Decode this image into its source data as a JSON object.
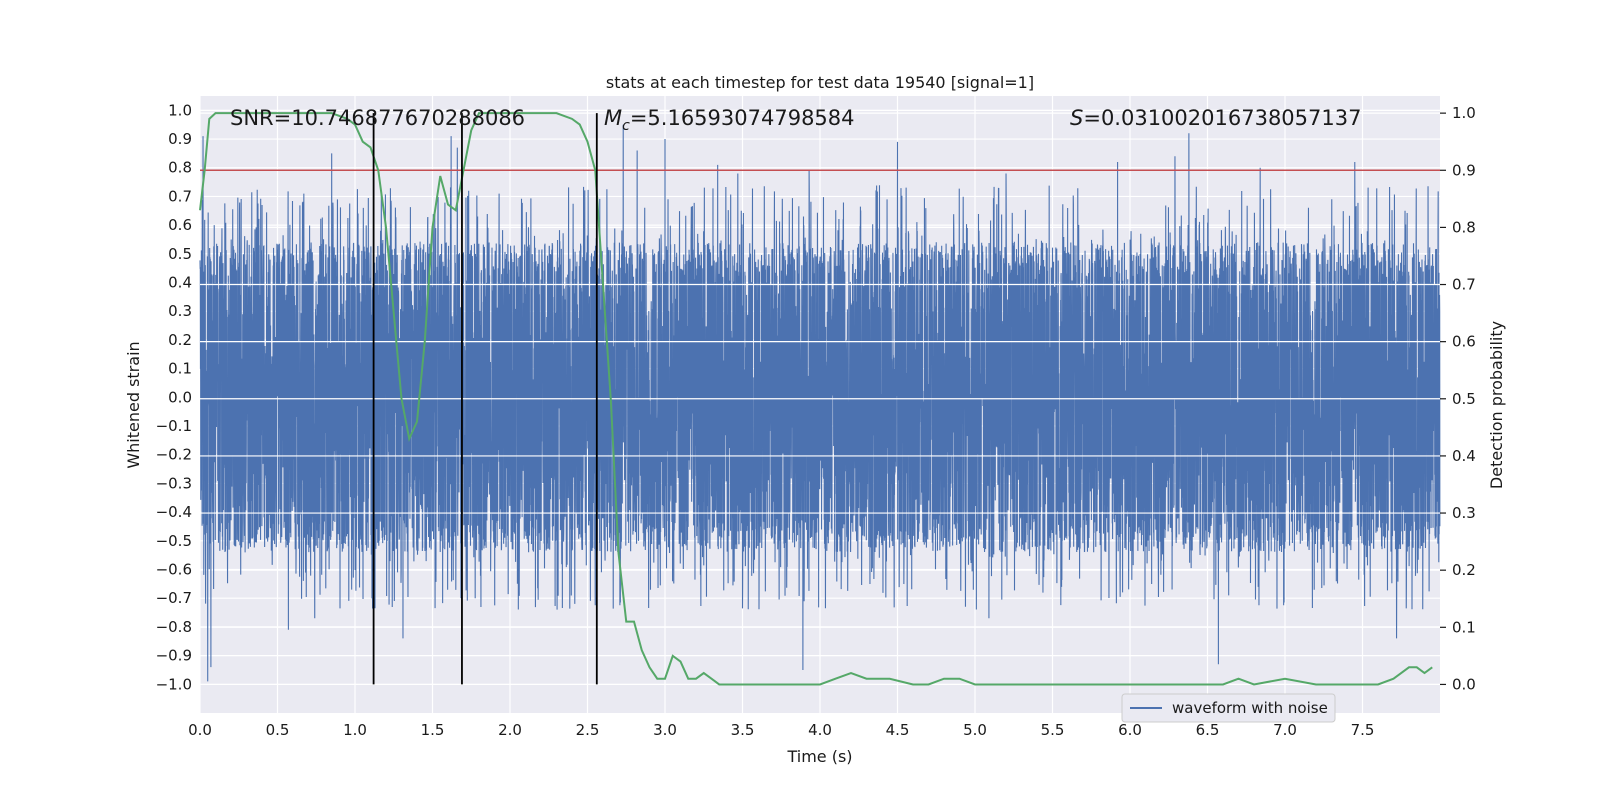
{
  "chart_data": {
    "type": "line",
    "title": "stats at each timestep for test data 19540 [signal=1]",
    "xlabel": "Time (s)",
    "ylabel_left": "Whitened strain",
    "ylabel_right": "Detection probability",
    "xlim": [
      0.0,
      8.0
    ],
    "ylim_left": [
      -1.1,
      1.05
    ],
    "ylim_right": [
      -0.05,
      1.03
    ],
    "x_ticks": [
      0.0,
      0.5,
      1.0,
      1.5,
      2.0,
      2.5,
      3.0,
      3.5,
      4.0,
      4.5,
      5.0,
      5.5,
      6.0,
      6.5,
      7.0,
      7.5
    ],
    "x_tick_labels": [
      "0.0",
      "0.5",
      "1.0",
      "1.5",
      "2.0",
      "2.5",
      "3.0",
      "3.5",
      "4.0",
      "4.5",
      "5.0",
      "5.5",
      "6.0",
      "6.5",
      "7.0",
      "7.5"
    ],
    "y_left_ticks": [
      1.0,
      0.9,
      0.8,
      0.7,
      0.6,
      0.5,
      0.4,
      0.3,
      0.2,
      0.1,
      0.0,
      -0.1,
      -0.2,
      -0.3,
      -0.4,
      -0.5,
      -0.6,
      -0.7,
      -0.8,
      -0.9,
      -1.0
    ],
    "y_left_tick_labels": [
      "1.0",
      "0.9",
      "0.8",
      "0.7",
      "0.6",
      "0.5",
      "0.4",
      "0.3",
      "0.2",
      "0.1",
      "0.0",
      "−0.1",
      "−0.2",
      "−0.3",
      "−0.4",
      "−0.5",
      "−0.6",
      "−0.7",
      "−0.8",
      "−0.9",
      "−1.0"
    ],
    "y_right_ticks": [
      1.0,
      0.9,
      0.8,
      0.7,
      0.6,
      0.5,
      0.4,
      0.3,
      0.2,
      0.1,
      0.0
    ],
    "y_right_tick_labels": [
      "1.0",
      "0.9",
      "0.8",
      "0.7",
      "0.6",
      "0.5",
      "0.4",
      "0.3",
      "0.2",
      "0.1",
      "0.0"
    ],
    "grid": true,
    "legend": {
      "position": "bottom-right",
      "entries": [
        "waveform with noise"
      ]
    },
    "annotations": {
      "snr": "SNR=10.746877670288086",
      "mc_symbol": "M",
      "mc_sub": "c",
      "mc_value": "=5.16593074798584",
      "s_symbol": "S",
      "s_value": "=0.031002016738057137"
    },
    "threshold": {
      "axis": "right",
      "value": 0.9,
      "color": "#c44e52"
    },
    "vertical_markers_x": [
      1.12,
      1.69,
      2.56
    ],
    "waveform": {
      "name": "waveform with noise",
      "color": "#4c72b0",
      "duration_s": 8.0,
      "sample_rate_hz": 1024,
      "envelope_max": 0.42,
      "envelope_min": -0.42,
      "peaks": [
        {
          "t": 0.02,
          "v": 0.91
        },
        {
          "t": 0.05,
          "v": -0.99
        },
        {
          "t": 0.07,
          "v": -0.94
        },
        {
          "t": 0.4,
          "v": 0.67
        },
        {
          "t": 0.57,
          "v": -0.81
        },
        {
          "t": 0.67,
          "v": 0.71
        },
        {
          "t": 0.74,
          "v": -0.77
        },
        {
          "t": 0.85,
          "v": 0.85
        },
        {
          "t": 1.17,
          "v": 0.72
        },
        {
          "t": 1.31,
          "v": -0.84
        },
        {
          "t": 1.62,
          "v": 0.91
        },
        {
          "t": 1.66,
          "v": 0.87
        },
        {
          "t": 1.93,
          "v": 0.71
        },
        {
          "t": 2.73,
          "v": 0.95
        },
        {
          "t": 2.82,
          "v": 0.86
        },
        {
          "t": 3.0,
          "v": 0.9
        },
        {
          "t": 3.34,
          "v": 0.81
        },
        {
          "t": 3.47,
          "v": 0.78
        },
        {
          "t": 3.89,
          "v": -0.95
        },
        {
          "t": 3.93,
          "v": 0.79
        },
        {
          "t": 4.5,
          "v": 0.89
        },
        {
          "t": 5.09,
          "v": -0.77
        },
        {
          "t": 5.2,
          "v": 0.78
        },
        {
          "t": 5.92,
          "v": 0.82
        },
        {
          "t": 6.29,
          "v": 0.84
        },
        {
          "t": 6.38,
          "v": 0.92
        },
        {
          "t": 6.57,
          "v": -0.93
        },
        {
          "t": 6.84,
          "v": 0.8
        },
        {
          "t": 7.45,
          "v": 0.82
        },
        {
          "t": 7.72,
          "v": -0.84
        }
      ]
    },
    "detection_probability": {
      "name": "detection probability",
      "color": "#55a868",
      "x": [
        0.0,
        0.03,
        0.06,
        0.1,
        0.2,
        0.3,
        0.5,
        0.7,
        0.85,
        0.95,
        1.0,
        1.05,
        1.1,
        1.15,
        1.2,
        1.25,
        1.3,
        1.35,
        1.4,
        1.45,
        1.5,
        1.55,
        1.6,
        1.65,
        1.7,
        1.75,
        1.8,
        1.85,
        1.9,
        2.0,
        2.1,
        2.2,
        2.3,
        2.4,
        2.45,
        2.5,
        2.55,
        2.6,
        2.65,
        2.7,
        2.75,
        2.8,
        2.85,
        2.9,
        2.95,
        3.0,
        3.05,
        3.1,
        3.15,
        3.2,
        3.25,
        3.3,
        3.35,
        3.4,
        3.5,
        3.6,
        3.8,
        4.0,
        4.1,
        4.2,
        4.3,
        4.45,
        4.6,
        4.7,
        4.8,
        4.9,
        5.0,
        5.2,
        5.5,
        6.0,
        6.3,
        6.6,
        6.7,
        6.8,
        7.0,
        7.2,
        7.6,
        7.7,
        7.8,
        7.85,
        7.9,
        7.95
      ],
      "y": [
        0.83,
        0.9,
        0.99,
        1.0,
        1.0,
        1.0,
        1.0,
        1.0,
        1.0,
        0.99,
        0.98,
        0.95,
        0.94,
        0.9,
        0.8,
        0.65,
        0.5,
        0.43,
        0.46,
        0.6,
        0.8,
        0.89,
        0.84,
        0.83,
        0.9,
        0.97,
        1.0,
        1.0,
        1.0,
        1.0,
        1.0,
        1.0,
        1.0,
        0.99,
        0.98,
        0.95,
        0.9,
        0.7,
        0.5,
        0.23,
        0.11,
        0.11,
        0.06,
        0.03,
        0.01,
        0.01,
        0.05,
        0.04,
        0.01,
        0.01,
        0.02,
        0.01,
        0.0,
        0.0,
        0.0,
        0.0,
        0.0,
        0.0,
        0.01,
        0.02,
        0.01,
        0.01,
        0.0,
        0.0,
        0.01,
        0.01,
        0.0,
        0.0,
        0.0,
        0.0,
        0.0,
        0.0,
        0.01,
        0.0,
        0.01,
        0.0,
        0.0,
        0.01,
        0.03,
        0.03,
        0.02,
        0.03
      ]
    }
  }
}
